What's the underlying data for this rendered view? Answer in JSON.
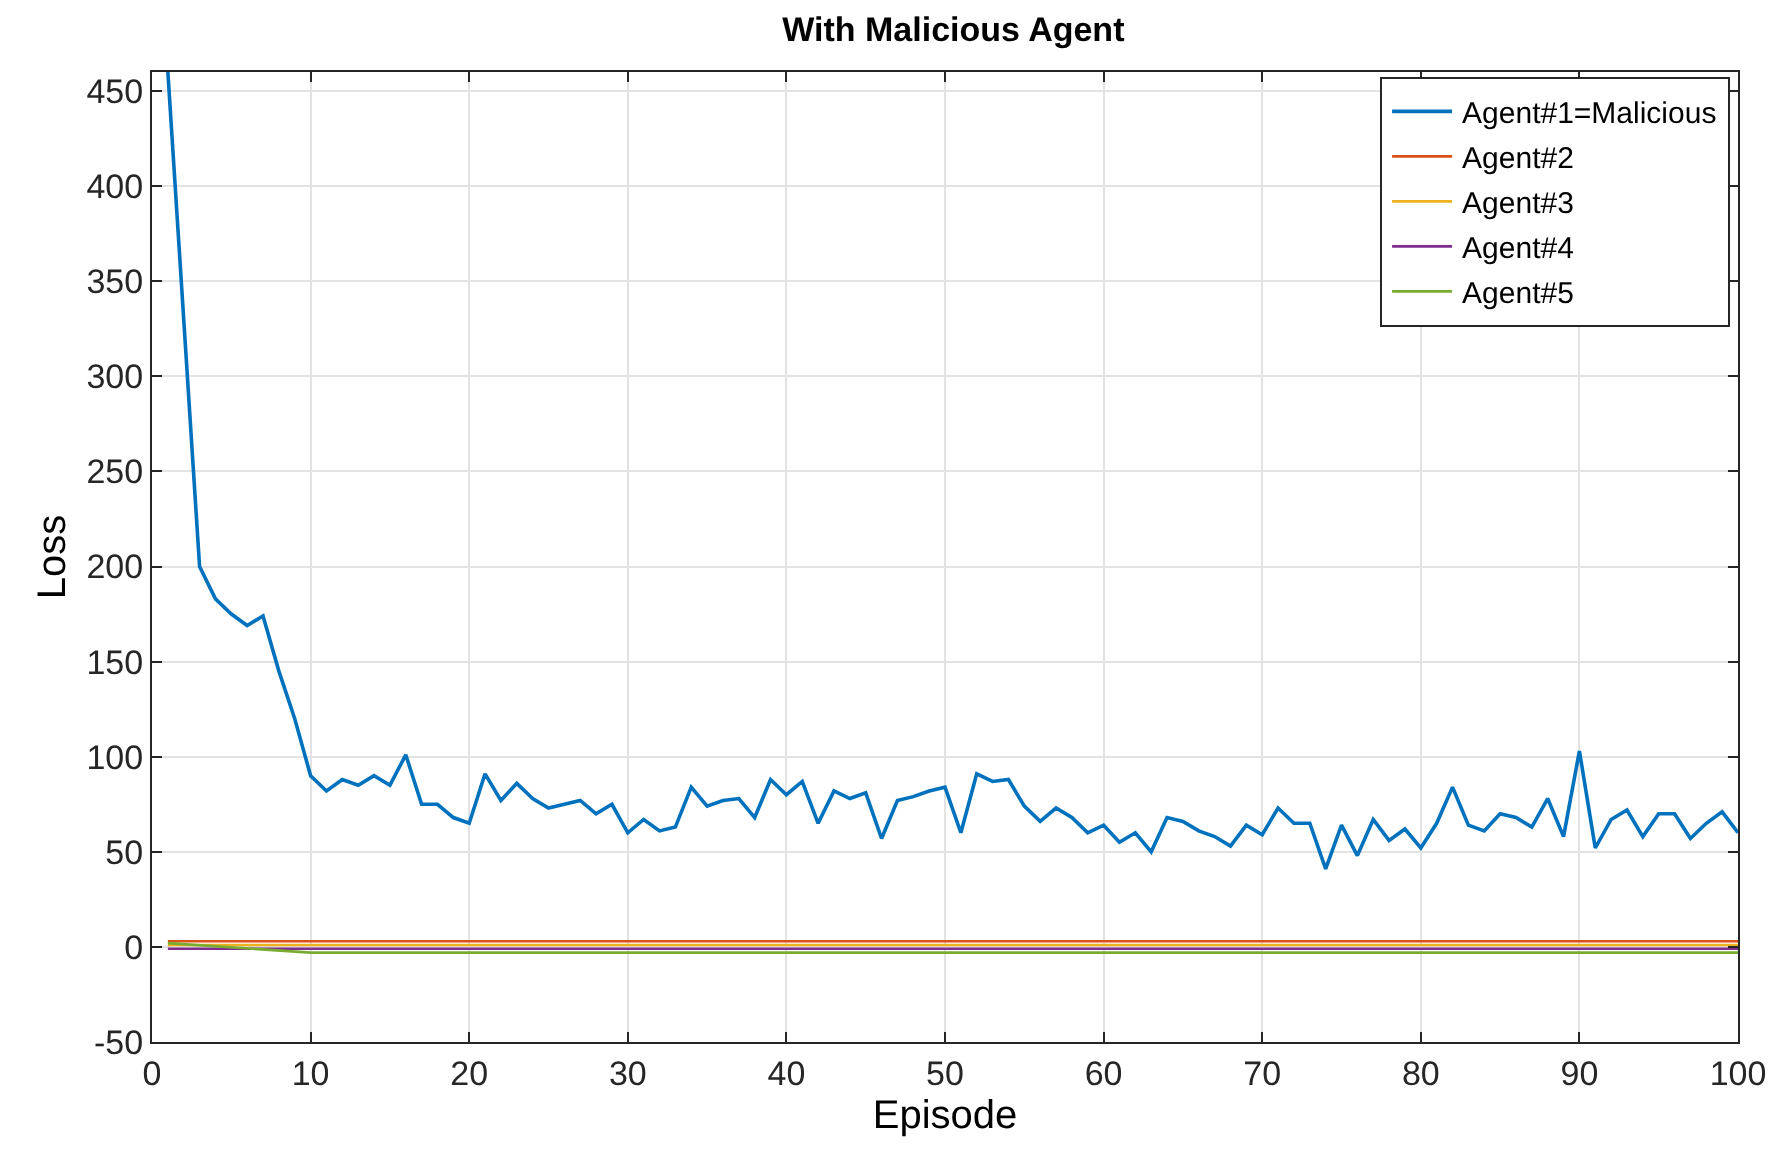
{
  "chart_data": {
    "type": "line",
    "title": "With Malicious Agent",
    "xlabel": "Episode",
    "ylabel": "Loss",
    "xlim": [
      0,
      100
    ],
    "xticks": [
      0,
      10,
      20,
      30,
      40,
      50,
      60,
      70,
      80,
      90,
      100
    ],
    "ylim": [
      -50,
      460
    ],
    "yticks": [
      -50,
      0,
      50,
      100,
      150,
      200,
      250,
      300,
      350,
      400,
      450
    ],
    "grid": true,
    "legend": "top right",
    "line_style": "solid",
    "marker": "none",
    "x": [
      1,
      2,
      3,
      4,
      5,
      6,
      7,
      8,
      9,
      10,
      11,
      12,
      13,
      14,
      15,
      16,
      17,
      18,
      19,
      20,
      21,
      22,
      23,
      24,
      25,
      26,
      27,
      28,
      29,
      30,
      31,
      32,
      33,
      34,
      35,
      36,
      37,
      38,
      39,
      40,
      41,
      42,
      43,
      44,
      45,
      46,
      47,
      48,
      49,
      50,
      51,
      52,
      53,
      54,
      55,
      56,
      57,
      58,
      59,
      60,
      61,
      62,
      63,
      64,
      65,
      66,
      67,
      68,
      69,
      70,
      71,
      72,
      73,
      74,
      75,
      76,
      77,
      78,
      79,
      80,
      81,
      82,
      83,
      84,
      85,
      86,
      87,
      88,
      89,
      90,
      91,
      92,
      93,
      94,
      95,
      96,
      97,
      98,
      99,
      100
    ],
    "series": [
      {
        "name": "Agent#1=Malicious",
        "color": "#0072bd",
        "values": [
          460,
          330,
          200,
          183,
          175,
          169,
          174,
          145,
          120,
          90,
          82,
          88,
          85,
          90,
          85,
          101,
          75,
          75,
          68,
          65,
          91,
          77,
          86,
          78,
          73,
          75,
          77,
          70,
          75,
          60,
          67,
          61,
          63,
          84,
          74,
          77,
          78,
          68,
          88,
          80,
          87,
          65,
          82,
          78,
          81,
          57,
          77,
          79,
          82,
          84,
          60,
          91,
          87,
          88,
          74,
          66,
          73,
          68,
          60,
          64,
          55,
          60,
          50,
          68,
          66,
          61,
          58,
          53,
          64,
          59,
          73,
          65,
          65,
          41,
          64,
          48,
          67,
          56,
          62,
          52,
          65,
          84,
          64,
          61,
          70,
          68,
          63,
          78,
          58,
          103,
          52,
          67,
          72,
          58,
          70,
          70,
          57,
          65,
          71,
          60
        ]
      },
      {
        "name": "Agent#2",
        "color": "#d95319",
        "x": [
          1,
          10,
          20,
          30,
          40,
          50,
          60,
          70,
          80,
          90,
          100
        ],
        "values": [
          3,
          3,
          3,
          3,
          3,
          3,
          3,
          3,
          3,
          3,
          3
        ]
      },
      {
        "name": "Agent#3",
        "color": "#edb120",
        "x": [
          1,
          10,
          20,
          30,
          40,
          50,
          60,
          70,
          80,
          90,
          100
        ],
        "values": [
          1,
          1,
          1,
          1,
          1,
          1,
          1,
          1,
          1,
          1,
          1
        ]
      },
      {
        "name": "Agent#4",
        "color": "#7e2f8e",
        "x": [
          1,
          10,
          20,
          30,
          40,
          50,
          60,
          70,
          80,
          90,
          100
        ],
        "values": [
          -1,
          -1,
          -1,
          -1,
          -1,
          -1,
          -1,
          -1,
          -1,
          -1,
          -1
        ]
      },
      {
        "name": "Agent#5",
        "color": "#77ac30",
        "x": [
          1,
          10,
          20,
          30,
          40,
          50,
          60,
          70,
          80,
          90,
          100
        ],
        "values": [
          2,
          -3,
          -3,
          -3,
          -3,
          -3,
          -3,
          -3,
          -3,
          -3,
          -3
        ]
      }
    ]
  }
}
